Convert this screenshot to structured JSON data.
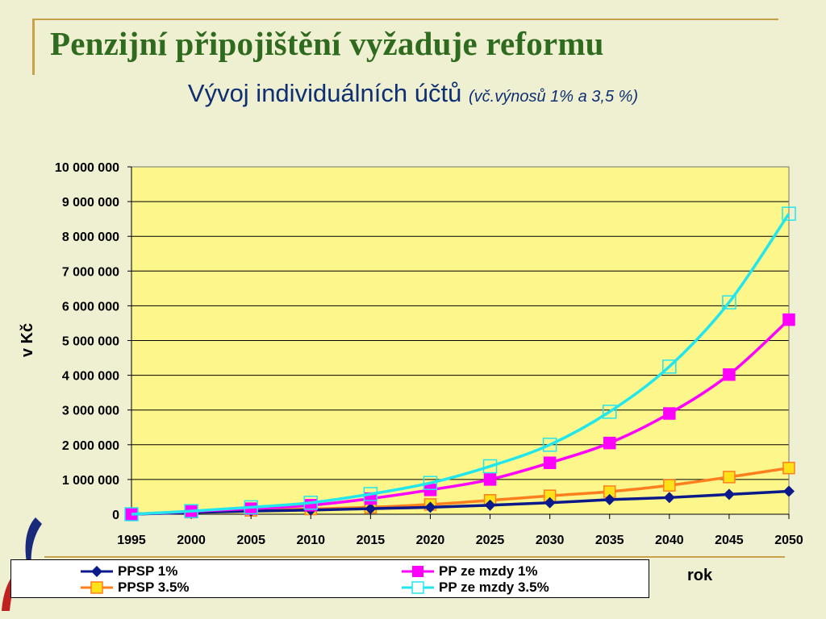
{
  "slide": {
    "title": "Penzijní připojištění vyžaduje reformu",
    "subtitle_main": "Vývoj individuálních účtů",
    "subtitle_note": "(vč.výnosů 1% a 3,5 %)"
  },
  "colors": {
    "plot_bg": "#fdf68a",
    "ppsp1": "#0b1a8a",
    "pp1": "#ff00ff",
    "ppsp35": "#ff7f1f",
    "ppsp35_marker": "#ffe11a",
    "pp35": "#22e6ee"
  },
  "chart_data": {
    "type": "line",
    "title": "",
    "xlabel": "rok",
    "ylabel": "v Kč",
    "x": [
      1995,
      2000,
      2005,
      2010,
      2015,
      2020,
      2025,
      2030,
      2035,
      2040,
      2045,
      2050
    ],
    "xtick_labels": [
      "1995",
      "2000",
      "2005",
      "2010",
      "2015",
      "2020",
      "2025",
      "2030",
      "2035",
      "2040",
      "2045",
      "2050"
    ],
    "ylim": [
      0,
      10000000
    ],
    "ytick_labels": [
      "0",
      "1 000 000",
      "2 000 000",
      "3 000 000",
      "4 000 000",
      "5 000 000",
      "6 000 000",
      "7 000 000",
      "8 000 000",
      "9 000 000",
      "10 000 000"
    ],
    "grid": true,
    "legend_position": "bottom",
    "series": [
      {
        "name": "PPSP 1%",
        "marker": "diamond",
        "values": [
          0,
          50000,
          90000,
          120000,
          160000,
          200000,
          260000,
          330000,
          420000,
          480000,
          570000,
          660000
        ]
      },
      {
        "name": "PP ze mzdy 1%",
        "marker": "square",
        "values": [
          0,
          80000,
          160000,
          260000,
          450000,
          700000,
          1000000,
          1480000,
          2050000,
          2900000,
          4020000,
          5600000
        ]
      },
      {
        "name": "PPSP 3.5%",
        "marker": "square",
        "values": [
          0,
          60000,
          110000,
          150000,
          200000,
          280000,
          400000,
          530000,
          650000,
          830000,
          1070000,
          1330000
        ]
      },
      {
        "name": "PP ze mzdy 3.5%",
        "marker": "open-square",
        "values": [
          0,
          90000,
          200000,
          330000,
          580000,
          900000,
          1380000,
          2000000,
          2950000,
          4250000,
          6100000,
          8650000
        ]
      }
    ]
  }
}
